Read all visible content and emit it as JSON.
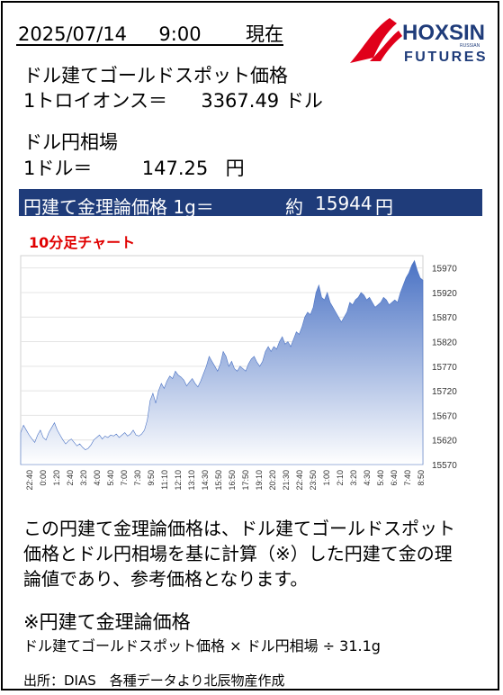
{
  "header": {
    "date": "2025/07/14",
    "time": "9:00",
    "as_of": "現在"
  },
  "logo": {
    "brand": "HOXSIN",
    "sub": "FUTURES",
    "tag": "RUSSIAN",
    "colors": {
      "red": "#e0001a",
      "navy": "#1f3c7a"
    }
  },
  "gold": {
    "label": "ドル建てゴールドスポット価格",
    "unit_prefix": "1トロイオンス＝",
    "value": "3367.49",
    "unit": "ドル"
  },
  "fx": {
    "label": "ドル円相場",
    "unit_prefix": "1ドル＝",
    "value": "147.25",
    "unit": "円"
  },
  "banner": {
    "label": "円建て金理論価格 1g＝",
    "approx": "約",
    "value": "15944",
    "unit": "円",
    "color": "#1f3c7a"
  },
  "chart_title": "10分足チャート",
  "chart_data": {
    "type": "area",
    "ylim": [
      15570,
      15995
    ],
    "yticks": [
      15570,
      15620,
      15670,
      15720,
      15770,
      15820,
      15870,
      15920,
      15970
    ],
    "xticks": [
      "22:40",
      "23:20",
      "0:00",
      "0:40",
      "1:20",
      "2:00",
      "2:40",
      "3:20",
      "4:00",
      "4:40",
      "5:20",
      "6:00",
      "6:40",
      "7:20",
      "8:00",
      "8:40",
      "9:20",
      "10:00",
      "10:40",
      "11:20",
      "12:00",
      "12:40",
      "13:20",
      "14:00",
      "14:40",
      "15:20",
      "16:00",
      "16:40",
      "17:20",
      "18:00",
      "18:40",
      "19:20",
      "20:00",
      "20:40",
      "21:20",
      "22:00",
      "22:40",
      "23:20",
      "0:00",
      "0:40",
      "1:20",
      "2:00",
      "2:40",
      "3:20",
      "4:00",
      "4:40",
      "5:20",
      "6:00",
      "6:40",
      "7:20",
      "8:00",
      "8:40"
    ],
    "xtick_labels": [
      "22:40",
      "0:00",
      "1:20",
      "2:40",
      "3:20",
      "4:00",
      "5:40",
      "7:00",
      "7:30",
      "9:50",
      "11:10",
      "12:10",
      "13:10",
      "14:30",
      "15:50",
      "16:50",
      "17:50",
      "19:10",
      "20:20",
      "21:30",
      "22:40",
      "23:50",
      "1:00",
      "2:10",
      "3:20",
      "4:30",
      "5:40",
      "6:40",
      "7:40",
      "8:50"
    ],
    "values": [
      15635,
      15650,
      15640,
      15630,
      15622,
      15615,
      15630,
      15640,
      15625,
      15620,
      15635,
      15645,
      15655,
      15640,
      15630,
      15620,
      15612,
      15618,
      15622,
      15615,
      15608,
      15612,
      15605,
      15600,
      15603,
      15610,
      15620,
      15625,
      15630,
      15622,
      15628,
      15625,
      15630,
      15628,
      15632,
      15625,
      15630,
      15635,
      15628,
      15632,
      15640,
      15630,
      15628,
      15632,
      15640,
      15660,
      15700,
      15715,
      15695,
      15720,
      15735,
      15725,
      15740,
      15750,
      15745,
      15760,
      15752,
      15748,
      15742,
      15730,
      15738,
      15745,
      15735,
      15728,
      15740,
      15755,
      15770,
      15790,
      15780,
      15770,
      15760,
      15775,
      15800,
      15790,
      15770,
      15780,
      15765,
      15760,
      15770,
      15765,
      15760,
      15775,
      15785,
      15790,
      15778,
      15770,
      15780,
      15800,
      15810,
      15800,
      15810,
      15805,
      15820,
      15830,
      15815,
      15820,
      15810,
      15825,
      15840,
      15835,
      15850,
      15870,
      15880,
      15875,
      15890,
      15920,
      15935,
      15910,
      15905,
      15920,
      15900,
      15890,
      15880,
      15870,
      15860,
      15870,
      15880,
      15900,
      15895,
      15905,
      15910,
      15920,
      15915,
      15905,
      15910,
      15900,
      15890,
      15895,
      15900,
      15910,
      15905,
      15895,
      15900,
      15905,
      15900,
      15920,
      15935,
      15950,
      15960,
      15975,
      15985,
      15965,
      15950,
      15945
    ],
    "fill_top": "#4a72c4",
    "fill_bottom": "#ffffff",
    "grid": true
  },
  "description": {
    "lines": [
      "この円建て金理論価格は、ドル建てゴールドスポット",
      "価格とドル円相場を基に計算（※）した円建て金の理",
      "論値であり、参考価格となります。"
    ]
  },
  "formula": {
    "title": "※円建て金理論価格",
    "text": "ドル建てゴールドスポット価格 × ドル円相場 ÷ 31.1g"
  },
  "source": "出所：DIAS　各種データより北辰物産作成"
}
